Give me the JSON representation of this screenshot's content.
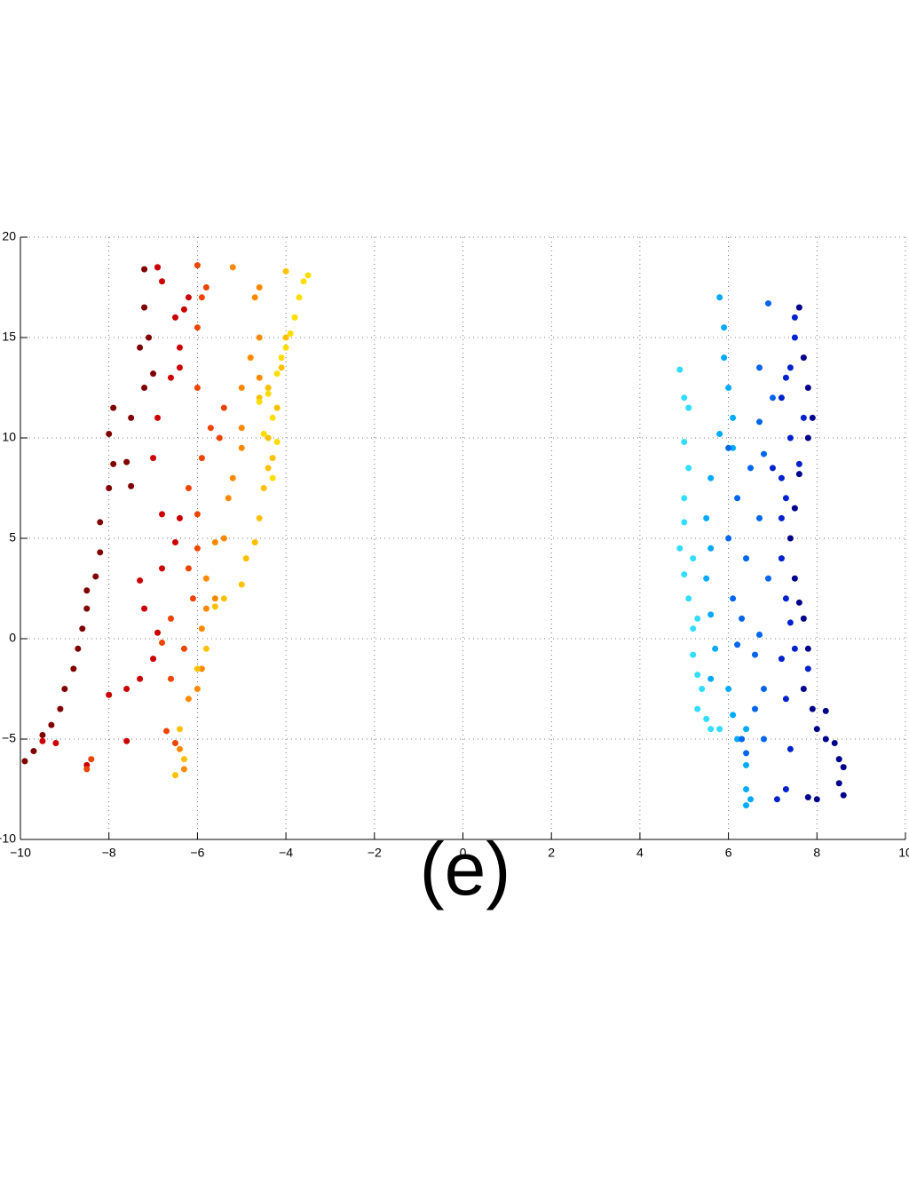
{
  "chart_data": {
    "type": "scatter",
    "title": "(e)",
    "xlim": [
      -10,
      10
    ],
    "ylim": [
      -10,
      20
    ],
    "xticks": [
      {
        "value": -10,
        "label": "−10"
      },
      {
        "value": -8,
        "label": "−8"
      },
      {
        "value": -6,
        "label": "−6"
      },
      {
        "value": -4,
        "label": "−4"
      },
      {
        "value": -2,
        "label": "−2"
      },
      0,
      2,
      4,
      6,
      8,
      10
    ],
    "yticks": [
      {
        "value": -10,
        "label": "−10"
      },
      {
        "value": -5,
        "label": "−5"
      },
      0,
      5,
      10,
      15,
      20
    ],
    "grid": true,
    "series": [
      {
        "color": "#800000",
        "x": [
          -9.9,
          -9.7,
          -9.5,
          -9.3,
          -9.1,
          -9.0,
          -8.8,
          -8.7,
          -8.6,
          -8.5,
          -8.5,
          -8.3,
          -8.2,
          -8.2,
          -8.0,
          -7.9,
          -7.6,
          -8.0,
          -7.9,
          -7.5,
          -7.2,
          -7.3,
          -7.1,
          -7.2,
          -7.2,
          -6.9,
          -7.0,
          -7.5
        ],
        "values": [
          -6.1,
          -5.6,
          -4.8,
          -4.3,
          -3.5,
          -2.5,
          -1.5,
          -0.5,
          0.5,
          1.5,
          2.4,
          3.1,
          4.3,
          5.8,
          7.5,
          8.7,
          8.8,
          10.2,
          11.5,
          11.0,
          12.5,
          14.5,
          15.0,
          16.5,
          18.4,
          18.5,
          13.2,
          7.6
        ]
      },
      {
        "color": "#cc0000",
        "x": [
          -9.5,
          -9.2,
          -8.5,
          -7.6,
          -7.3,
          -7.0,
          -7.2,
          -7.3,
          -6.9,
          -6.8,
          -6.5,
          -6.8,
          -6.4,
          -7.0,
          -6.9,
          -6.6,
          -6.4,
          -6.4,
          -6.5,
          -6.3,
          -6.2,
          -6.8,
          -6.9,
          -7.6,
          -8.0
        ],
        "values": [
          -5.1,
          -5.2,
          -6.3,
          -5.1,
          -2.0,
          -1.0,
          1.5,
          2.9,
          0.3,
          3.5,
          4.8,
          6.2,
          6.0,
          9.0,
          11.0,
          13.0,
          13.5,
          14.5,
          16.0,
          16.4,
          17.0,
          17.8,
          18.5,
          -2.5,
          -2.8
        ]
      },
      {
        "color": "#ee4400",
        "x": [
          -8.5,
          -8.4,
          -6.7,
          -6.5,
          -6.6,
          -6.3,
          -6.8,
          -6.6,
          -6.1,
          -6.2,
          -6.0,
          -6.0,
          -6.2,
          -5.9,
          -5.7,
          -5.5,
          -6.0,
          -6.0,
          -5.9,
          -6.0,
          -5.8,
          -5.4
        ],
        "values": [
          -6.5,
          -6.0,
          -4.6,
          -5.2,
          -2.0,
          -0.5,
          -0.2,
          1.0,
          2.0,
          3.5,
          4.5,
          6.2,
          7.5,
          9.0,
          10.5,
          10.0,
          12.5,
          15.5,
          17.0,
          18.6,
          17.5,
          11.5
        ]
      },
      {
        "color": "#ff8800",
        "x": [
          -6.4,
          -6.3,
          -6.2,
          -6.0,
          -5.9,
          -5.9,
          -5.8,
          -5.8,
          -5.6,
          -5.4,
          -5.3,
          -5.2,
          -5.0,
          -5.0,
          -5.0,
          -4.8,
          -4.6,
          -4.7,
          -5.2,
          -4.6,
          -4.6,
          -5.6
        ],
        "values": [
          -5.5,
          -6.5,
          -3.0,
          -2.5,
          -1.5,
          0.5,
          1.5,
          3.0,
          4.8,
          5.0,
          7.0,
          8.0,
          9.5,
          10.5,
          12.5,
          14.0,
          15.0,
          17.0,
          18.5,
          17.5,
          13.0,
          2.0
        ]
      },
      {
        "color": "#ffc000",
        "x": [
          -6.5,
          -6.3,
          -6.4,
          -6.0,
          -5.8,
          -5.6,
          -5.4,
          -5.0,
          -4.9,
          -4.7,
          -4.6,
          -4.5,
          -4.4,
          -4.4,
          -4.2,
          -4.4,
          -4.1,
          -4.0,
          -4.0,
          -4.3,
          -4.6
        ],
        "values": [
          -6.8,
          -6.0,
          -4.5,
          -1.5,
          -0.5,
          1.6,
          2.0,
          2.7,
          4.0,
          4.8,
          6.0,
          7.5,
          8.5,
          10.0,
          11.5,
          12.5,
          13.5,
          15.0,
          18.3,
          9.0,
          12.0
        ]
      },
      {
        "color": "#ffdd00",
        "x": [
          -4.3,
          -4.2,
          -4.3,
          -4.4,
          -4.2,
          -4.0,
          -3.9,
          -3.8,
          -3.7,
          -3.6,
          -3.5,
          -4.5,
          -4.6,
          -4.1
        ],
        "values": [
          8.0,
          9.8,
          11.0,
          12.2,
          13.2,
          14.5,
          15.2,
          16.0,
          17.0,
          17.8,
          18.1,
          10.2,
          11.8,
          14.0
        ]
      },
      {
        "color": "#33ddff",
        "x": [
          4.9,
          5.0,
          5.0,
          5.1,
          5.0,
          5.0,
          4.9,
          5.0,
          5.1,
          5.2,
          5.2,
          5.3,
          5.4,
          5.3,
          5.5,
          5.6,
          5.8,
          5.1,
          5.3,
          5.2
        ],
        "values": [
          13.4,
          12.0,
          9.8,
          8.5,
          7.0,
          5.8,
          4.5,
          3.2,
          2.0,
          0.5,
          -0.8,
          -1.8,
          -2.5,
          -3.5,
          -4.0,
          -4.5,
          -4.5,
          11.5,
          1.0,
          4.0
        ]
      },
      {
        "color": "#00aaff",
        "x": [
          5.8,
          5.9,
          5.9,
          6.0,
          6.1,
          6.1,
          5.8,
          5.6,
          5.5,
          5.6,
          5.5,
          5.6,
          5.7,
          5.6,
          6.0,
          6.1,
          6.2,
          6.4,
          6.4,
          6.4,
          6.4,
          6.5
        ],
        "values": [
          17.0,
          15.5,
          14.0,
          12.5,
          11.0,
          9.5,
          10.2,
          8.0,
          6.0,
          4.5,
          3.0,
          1.2,
          -0.5,
          -2.0,
          -2.5,
          -3.8,
          -5.0,
          -4.5,
          -6.3,
          -7.5,
          -8.3,
          -8.0
        ]
      },
      {
        "color": "#0066ee",
        "x": [
          6.0,
          6.5,
          6.8,
          6.2,
          6.0,
          6.4,
          6.1,
          6.3,
          6.2,
          6.6,
          6.8,
          6.6,
          6.8,
          6.4,
          6.3,
          6.7,
          6.9,
          6.7,
          6.7,
          6.7,
          6.9,
          7.0
        ],
        "values": [
          9.5,
          8.5,
          9.2,
          7.0,
          5.0,
          4.0,
          2.0,
          1.0,
          -0.3,
          -0.8,
          -2.5,
          -3.5,
          -5.0,
          -5.7,
          -5.0,
          6.0,
          3.0,
          0.2,
          10.8,
          13.5,
          16.7,
          12.0
        ]
      },
      {
        "color": "#0022cc",
        "x": [
          7.1,
          7.3,
          7.4,
          7.3,
          7.2,
          7.5,
          7.4,
          7.3,
          7.2,
          7.2,
          7.3,
          7.2,
          7.0,
          7.4,
          7.2,
          7.4,
          7.5,
          7.5,
          7.3,
          7.6,
          7.7,
          7.8
        ],
        "values": [
          -8.0,
          -7.5,
          -5.5,
          -3.0,
          -1.0,
          -0.5,
          0.8,
          2.0,
          4.0,
          6.0,
          7.0,
          8.0,
          8.5,
          10.0,
          12.0,
          13.5,
          15.0,
          16.0,
          13.0,
          8.7,
          11.0,
          -1.5
        ]
      },
      {
        "color": "#00008b",
        "x": [
          7.6,
          7.7,
          7.8,
          7.9,
          7.8,
          7.6,
          7.5,
          7.4,
          7.5,
          7.6,
          7.7,
          7.8,
          7.7,
          7.9,
          8.0,
          8.2,
          8.4,
          8.5,
          8.6,
          8.6,
          8.5,
          8.0,
          7.8,
          8.2
        ],
        "values": [
          16.5,
          14.0,
          12.5,
          11.0,
          10.0,
          8.2,
          6.5,
          5.0,
          3.0,
          1.8,
          1.0,
          -0.5,
          -2.5,
          -3.5,
          -4.5,
          -5.0,
          -5.2,
          -6.0,
          -6.4,
          -7.8,
          -7.2,
          -8.0,
          -7.9,
          -3.6
        ]
      }
    ]
  }
}
